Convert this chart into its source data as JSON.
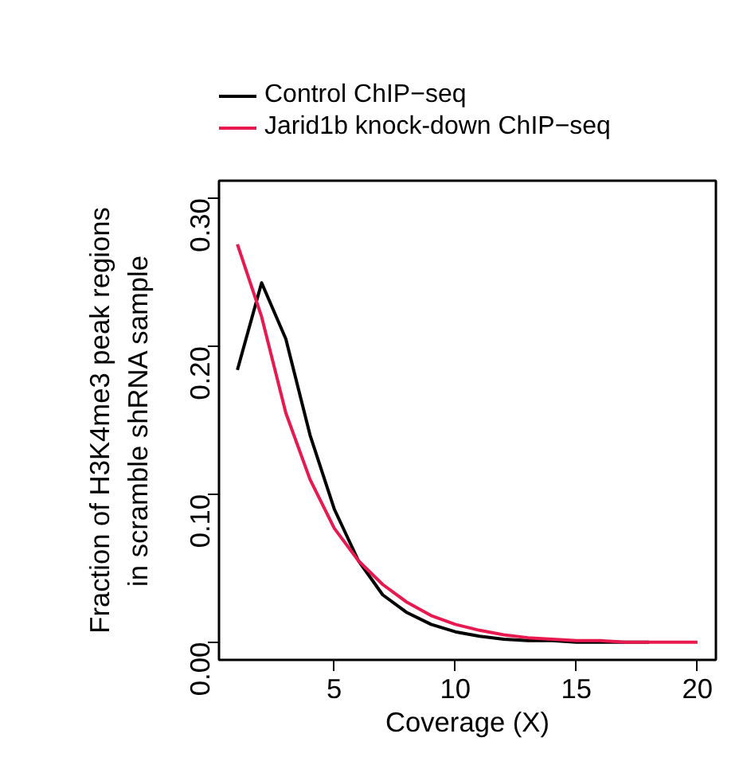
{
  "chart_data": {
    "type": "line",
    "xlabel": "Coverage (X)",
    "ylabel": "Fraction of H3K4me3 peak regions\nin scramble shRNA sample",
    "x": [
      1,
      2,
      3,
      4,
      5,
      6,
      7,
      8,
      9,
      10,
      11,
      12,
      13,
      14,
      15,
      16,
      17,
      18,
      19,
      20
    ],
    "series": [
      {
        "name": "Control ChIP−seq",
        "color": "#000000",
        "values": [
          0.184,
          0.243,
          0.205,
          0.14,
          0.09,
          0.055,
          0.032,
          0.02,
          0.012,
          0.007,
          0.004,
          0.002,
          0.001,
          0.001,
          0,
          0,
          0,
          0,
          null,
          null
        ]
      },
      {
        "name": "Jarid1b knock-down ChIP−seq",
        "color": "#e8194f",
        "values": [
          0.269,
          0.22,
          0.155,
          0.11,
          0.077,
          0.055,
          0.039,
          0.027,
          0.018,
          0.012,
          0.008,
          0.005,
          0.003,
          0.002,
          0.001,
          0.001,
          0,
          0,
          0,
          0
        ]
      }
    ],
    "xlim": [
      0.24,
      20.76
    ],
    "ylim": [
      -0.012,
      0.312
    ],
    "xticks": [
      5,
      10,
      15,
      20
    ],
    "yticks": [
      {
        "value": 0,
        "label": "0.00"
      },
      {
        "value": 0.1,
        "label": "0.10"
      },
      {
        "value": 0.2,
        "label": "0.20"
      },
      {
        "value": 0.3,
        "label": "0.30"
      }
    ],
    "grid": false,
    "legend": "top",
    "marker": "none",
    "line_style": "solid"
  }
}
